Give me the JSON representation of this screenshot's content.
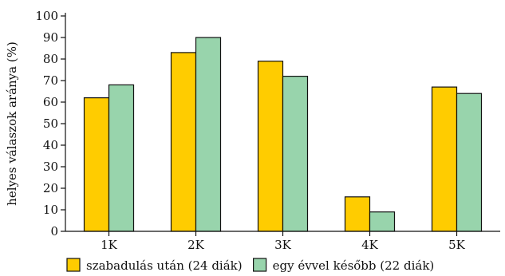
{
  "chart_data": {
    "type": "bar",
    "categories": [
      "1K",
      "2K",
      "3K",
      "4K",
      "5K"
    ],
    "series": [
      {
        "name": "szabadulás után (24 diák)",
        "values": [
          62,
          83,
          79,
          16,
          67
        ],
        "color": "#ffcc00"
      },
      {
        "name": "egy évvel később (22 diák)",
        "values": [
          68,
          90,
          72,
          9,
          64
        ],
        "color": "#98d4ac"
      }
    ],
    "y_ticks": [
      0,
      10,
      20,
      30,
      40,
      50,
      60,
      70,
      80,
      90,
      100
    ],
    "ylim": [
      0,
      100
    ],
    "ylabel": "helyes válaszok aránya (%)",
    "xlabel": "",
    "grid": false,
    "legend_position": "bottom"
  }
}
